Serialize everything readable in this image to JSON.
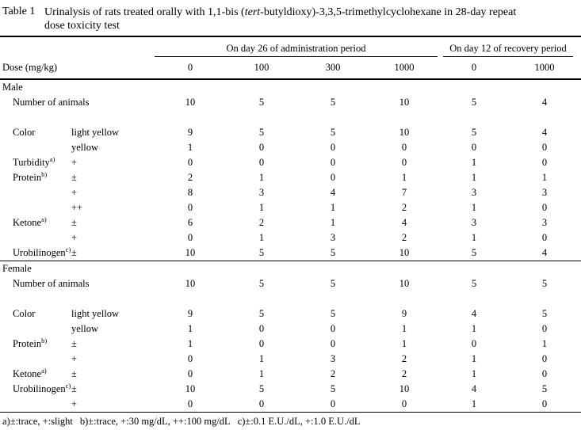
{
  "title": {
    "label": "Table 1",
    "line1_pre": "Urinalysis of rats treated orally with 1,1-bis (",
    "line1_italic": "tert",
    "line1_post": "-butyldioxy)-3,3,5-trimethylcyclohexane in 28-day repeat",
    "line2": "dose toxicity test"
  },
  "header": {
    "dose_label": "Dose (mg/kg)",
    "group1": "On day 26 of administration period",
    "group2": "On day 12 of recovery period",
    "doses": [
      "0",
      "100",
      "300",
      "1000",
      "0",
      "1000"
    ]
  },
  "table": {
    "sections": [
      {
        "name": "Male",
        "rows": [
          {
            "type": "count",
            "label": "Number of animals",
            "values": [
              "10",
              "5",
              "5",
              "10",
              "5",
              "4"
            ]
          },
          {
            "type": "spacer"
          },
          {
            "label": "Color",
            "sub": "light yellow",
            "values": [
              "9",
              "5",
              "5",
              "10",
              "5",
              "4"
            ]
          },
          {
            "label": "",
            "sub": "yellow",
            "values": [
              "1",
              "0",
              "0",
              "0",
              "0",
              "0"
            ]
          },
          {
            "label": "Turbidity",
            "sup": "a)",
            "sub": "+",
            "values": [
              "0",
              "0",
              "0",
              "0",
              "1",
              "0"
            ]
          },
          {
            "label": "Protein",
            "sup": "b)",
            "sub": "±",
            "values": [
              "2",
              "1",
              "0",
              "1",
              "1",
              "1"
            ]
          },
          {
            "label": "",
            "sub": "+",
            "values": [
              "8",
              "3",
              "4",
              "7",
              "3",
              "3"
            ]
          },
          {
            "label": "",
            "sub": "++",
            "values": [
              "0",
              "1",
              "1",
              "2",
              "1",
              "0"
            ]
          },
          {
            "label": "Ketone",
            "sup": "a)",
            "sub": "±",
            "values": [
              "6",
              "2",
              "1",
              "4",
              "3",
              "3"
            ]
          },
          {
            "label": "",
            "sub": "+",
            "values": [
              "0",
              "1",
              "3",
              "2",
              "1",
              "0"
            ]
          },
          {
            "label": "Urobilinogen",
            "sup": "c)",
            "sub": "±",
            "values": [
              "10",
              "5",
              "5",
              "10",
              "5",
              "4"
            ]
          }
        ]
      },
      {
        "name": "Female",
        "rows": [
          {
            "type": "count",
            "label": "Number of animals",
            "values": [
              "10",
              "5",
              "5",
              "10",
              "5",
              "5"
            ]
          },
          {
            "type": "spacer"
          },
          {
            "label": "Color",
            "sub": "light yellow",
            "values": [
              "9",
              "5",
              "5",
              "9",
              "4",
              "5"
            ]
          },
          {
            "label": "",
            "sub": "yellow",
            "values": [
              "1",
              "0",
              "0",
              "1",
              "1",
              "0"
            ]
          },
          {
            "label": "Protein",
            "sup": "b)",
            "sub": "±",
            "values": [
              "1",
              "0",
              "0",
              "1",
              "0",
              "1"
            ]
          },
          {
            "label": "",
            "sub": "+",
            "values": [
              "0",
              "1",
              "3",
              "2",
              "1",
              "0"
            ]
          },
          {
            "label": "Ketone",
            "sup": "a)",
            "sub": "±",
            "values": [
              "0",
              "1",
              "2",
              "2",
              "1",
              "0"
            ]
          },
          {
            "label": "Urobilinogen",
            "sup": "c)",
            "sub": "±",
            "values": [
              "10",
              "5",
              "5",
              "10",
              "4",
              "5"
            ]
          },
          {
            "label": "",
            "sub": "+",
            "values": [
              "0",
              "0",
              "0",
              "0",
              "1",
              "0"
            ]
          }
        ]
      }
    ]
  },
  "footnote": {
    "a": "a)±:trace, +:slight",
    "b": "b)±:trace, +:30 mg/dL, ++:100 mg/dL",
    "c": "c)±:0.1 E.U./dL, +:1.0 E.U./dL"
  },
  "colors": {
    "background": "#ffffff",
    "text": "#000000",
    "rule": "#000000"
  }
}
